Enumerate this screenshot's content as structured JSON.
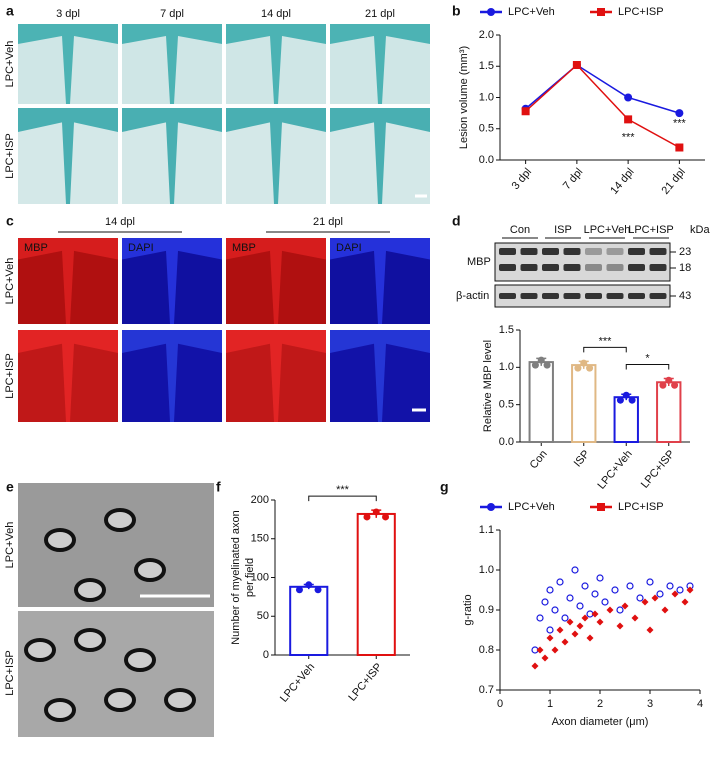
{
  "panel_labels": [
    "a",
    "b",
    "c",
    "d",
    "e",
    "f",
    "g"
  ],
  "panel_a": {
    "columns": [
      "3 dpl",
      "7 dpl",
      "14 dpl",
      "21 dpl"
    ],
    "rows": [
      "LPC+Veh",
      "LPC+ISP"
    ]
  },
  "panel_c": {
    "groups": [
      "14 dpl",
      "21 dpl"
    ],
    "stains": [
      "MBP",
      "DAPI",
      "MBP",
      "DAPI"
    ],
    "rows": [
      "LPC+Veh",
      "LPC+ISP"
    ]
  },
  "panel_d_blot": {
    "unit": "kDa",
    "lanes": [
      "Con",
      "ISP",
      "LPC+Veh",
      "LPC+ISP"
    ],
    "rows": [
      "MBP",
      "β-actin"
    ],
    "sizes": [
      "23",
      "18",
      "43"
    ]
  },
  "panel_e": {
    "rows": [
      "LPC+Veh",
      "LPC+ISP"
    ]
  },
  "chart_data": [
    {
      "type": "line",
      "ylabel": "Lesion volume (mm³)",
      "categories": [
        "3 dpl",
        "7 dpl",
        "14 dpl",
        "21 dpl"
      ],
      "series": [
        {
          "name": "LPC+Veh",
          "color": "#1a1adf",
          "values": [
            0.82,
            1.52,
            1.0,
            0.75
          ]
        },
        {
          "name": "LPC+ISP",
          "color": "#e01010",
          "values": [
            0.78,
            1.52,
            0.65,
            0.2
          ]
        }
      ],
      "ylim": [
        0,
        2.0
      ],
      "yticks": [
        {
          "value": 0,
          "label": "0.0"
        },
        {
          "value": 0.5,
          "label": "0.5"
        },
        {
          "value": 1,
          "label": "1.0"
        },
        {
          "value": 1.5,
          "label": "1.5"
        },
        {
          "value": 2,
          "label": "2.0"
        }
      ],
      "annotations": [
        "***",
        "***"
      ],
      "legend": "top"
    },
    {
      "type": "bar",
      "ylabel": "Relative MBP level",
      "categories": [
        "Con",
        "ISP",
        "LPC+Veh",
        "LPC+ISP"
      ],
      "values": [
        1.07,
        1.03,
        0.6,
        0.8
      ],
      "errors": [
        0.05,
        0.05,
        0.04,
        0.05
      ],
      "colors": [
        "#7f7f7f",
        "#e0b884",
        "#1a1adf",
        "#e0404a"
      ],
      "ylim": [
        0,
        1.5
      ],
      "yticks": [
        {
          "value": 0,
          "label": "0.0"
        },
        {
          "value": 0.5,
          "label": "0.5"
        },
        {
          "value": 1,
          "label": "1.0"
        },
        {
          "value": 1.5,
          "label": "1.5"
        }
      ],
      "annotations": [
        "***",
        "*"
      ]
    },
    {
      "type": "bar",
      "ylabel": [
        "Number of myelinated axon",
        "per field"
      ],
      "categories": [
        "LPC+Veh",
        "LPC+ISP"
      ],
      "values": [
        88,
        182
      ],
      "errors": [
        3,
        5
      ],
      "colors": [
        "#1a1adf",
        "#e01010"
      ],
      "ylim": [
        0,
        200
      ],
      "yticks": [
        0,
        50,
        100,
        150,
        200
      ],
      "annotations": [
        "***"
      ]
    },
    {
      "type": "scatter",
      "xlabel": "Axon diameter (μm)",
      "ylabel": "g-ratio",
      "series": [
        {
          "name": "LPC+Veh",
          "color": "#1a1adf",
          "x": [
            0.7,
            0.8,
            0.9,
            1.0,
            1.0,
            1.1,
            1.2,
            1.3,
            1.4,
            1.5,
            1.6,
            1.7,
            1.8,
            1.9,
            2.0,
            2.1,
            2.3,
            2.4,
            2.6,
            2.8,
            3.0,
            3.2,
            3.4,
            3.6,
            3.8
          ],
          "y": [
            0.8,
            0.88,
            0.92,
            0.85,
            0.95,
            0.9,
            0.97,
            0.88,
            0.93,
            1.0,
            0.91,
            0.96,
            0.89,
            0.94,
            0.98,
            0.92,
            0.95,
            0.9,
            0.96,
            0.93,
            0.97,
            0.94,
            0.96,
            0.95,
            0.96
          ]
        },
        {
          "name": "LPC+ISP",
          "color": "#e01010",
          "x": [
            0.7,
            0.8,
            0.9,
            1.0,
            1.1,
            1.2,
            1.3,
            1.4,
            1.5,
            1.6,
            1.7,
            1.8,
            1.9,
            2.0,
            2.2,
            2.4,
            2.5,
            2.7,
            2.9,
            3.0,
            3.1,
            3.3,
            3.5,
            3.7,
            3.8
          ],
          "y": [
            0.76,
            0.8,
            0.78,
            0.83,
            0.8,
            0.85,
            0.82,
            0.87,
            0.84,
            0.86,
            0.88,
            0.83,
            0.89,
            0.87,
            0.9,
            0.86,
            0.91,
            0.88,
            0.92,
            0.85,
            0.93,
            0.9,
            0.94,
            0.92,
            0.95
          ]
        }
      ],
      "xlim": [
        0,
        4
      ],
      "xticks": [
        0,
        1,
        2,
        3,
        4
      ],
      "ylim": [
        0.7,
        1.1
      ],
      "yticks": [
        0.7,
        0.8,
        0.9,
        {
          "value": 1.0,
          "label": "1.0"
        },
        1.1
      ],
      "legend": "top"
    }
  ]
}
